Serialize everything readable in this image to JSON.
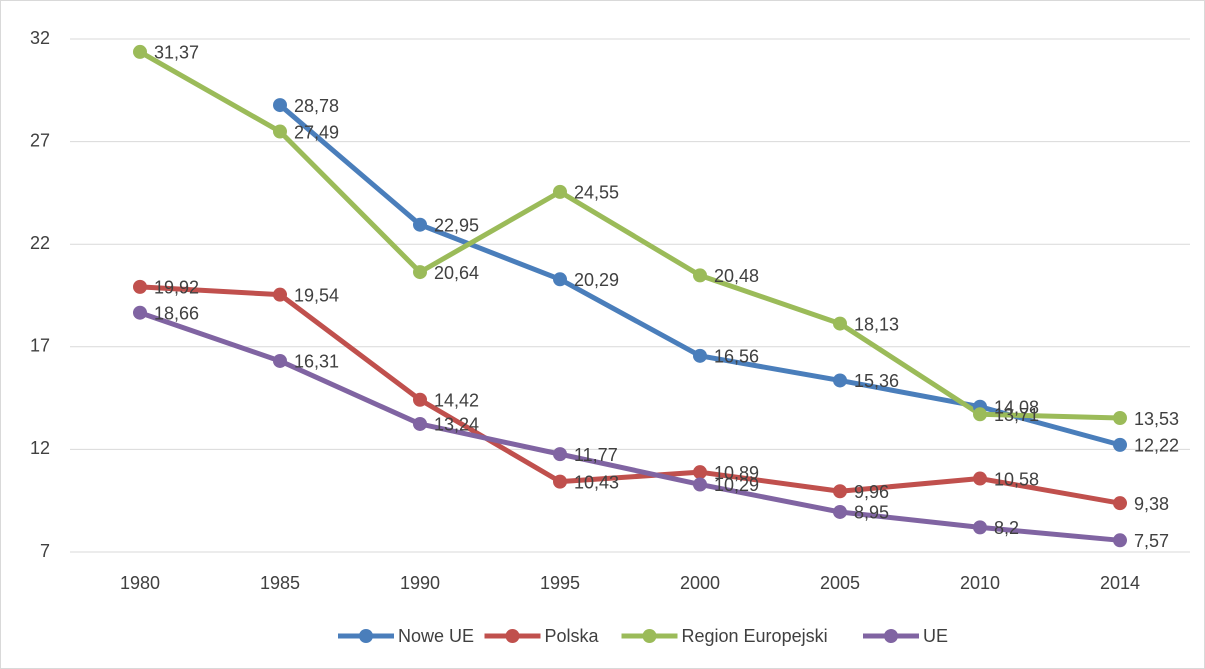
{
  "chart_data": {
    "type": "line",
    "categories": [
      "1980",
      "1985",
      "1990",
      "1995",
      "2000",
      "2005",
      "2010",
      "2014"
    ],
    "series": [
      {
        "name": "Nowe UE",
        "color": "#4a7ebb",
        "values": [
          null,
          28.78,
          22.95,
          20.29,
          16.56,
          15.36,
          14.08,
          12.22
        ],
        "value_labels": [
          null,
          "28,78",
          "22,95",
          "20,29",
          "16,56",
          "15,36",
          "14,08",
          "12,22"
        ]
      },
      {
        "name": "Polska",
        "color": "#c0504d",
        "values": [
          19.92,
          19.54,
          14.42,
          10.43,
          10.89,
          9.96,
          10.58,
          9.38
        ],
        "value_labels": [
          "19,92",
          "19,54",
          "14,42",
          "10,43",
          "10,89",
          "9,96",
          "10,58",
          "9,38"
        ]
      },
      {
        "name": "Region Europejski",
        "color": "#9bbb59",
        "values": [
          31.37,
          27.49,
          20.64,
          24.55,
          20.48,
          18.13,
          13.71,
          13.53
        ],
        "value_labels": [
          "31,37",
          "27,49",
          "20,64",
          "24,55",
          "20,48",
          "18,13",
          "13,71",
          "13,53"
        ]
      },
      {
        "name": "UE",
        "color": "#8064a2",
        "values": [
          18.66,
          16.31,
          13.24,
          11.77,
          10.29,
          8.95,
          8.2,
          7.57
        ],
        "value_labels": [
          "18,66",
          "16,31",
          "13,24",
          "11,77",
          "10,29",
          "8,95",
          "8,2",
          "7,57"
        ]
      }
    ],
    "ylim": [
      7,
      32
    ],
    "yticks": [
      7,
      12,
      17,
      22,
      27,
      32
    ],
    "grid": true,
    "legend": "bottom"
  }
}
